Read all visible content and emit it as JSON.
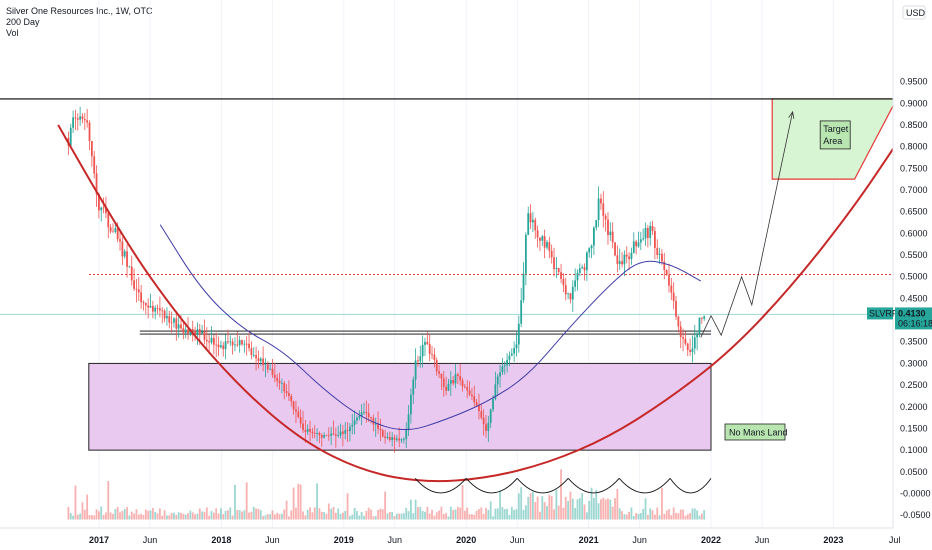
{
  "header": {
    "title": "Silver One Resources Inc., 1W, OTC",
    "indicator_1": "200 Day",
    "indicator_2": "Vol"
  },
  "colors": {
    "up": "#26a69a",
    "down": "#ef5350",
    "ma": "#3f3ca8",
    "curve": "#c62828",
    "zone_fill": "#e9c9ef",
    "target_fill": "#d7f5d2",
    "target_border": "#e53935",
    "price_badge": "#26a69a",
    "level_line": "#e53935"
  },
  "chart_data": {
    "type": "candlestick",
    "symbol": "SLVRF",
    "currency": "USD",
    "last_price": "0.4130",
    "countdown": "06:16:18",
    "y_axis": {
      "ticks": [
        "0.9500",
        "0.9000",
        "0.8500",
        "0.8000",
        "0.7500",
        "0.7000",
        "0.6500",
        "0.6000",
        "0.5500",
        "0.5000",
        "0.4500",
        "0.4000",
        "0.3500",
        "0.3000",
        "0.2500",
        "0.2000",
        "0.1500",
        "0.1000",
        "0.0500",
        "-0.0000",
        "-0.0500"
      ],
      "range": [
        -0.05,
        0.95
      ],
      "unit_label": "USD"
    },
    "x_axis": {
      "ticks": [
        "2017",
        "Jun",
        "2018",
        "Jun",
        "2019",
        "Jun",
        "2020",
        "Jun",
        "2021",
        "Jun",
        "2022",
        "Jun",
        "2023",
        "Jul"
      ],
      "range": [
        "2016-09",
        "2023-07"
      ]
    },
    "price_path": [
      [
        "2016-10",
        0.82
      ],
      [
        "2016-11",
        0.87
      ],
      [
        "2016-12",
        0.85
      ],
      [
        "2017-01",
        0.66
      ],
      [
        "2017-03",
        0.58
      ],
      [
        "2017-05",
        0.45
      ],
      [
        "2017-07",
        0.42
      ],
      [
        "2017-09",
        0.38
      ],
      [
        "2017-11",
        0.37
      ],
      [
        "2018-01",
        0.34
      ],
      [
        "2018-03",
        0.35
      ],
      [
        "2018-05",
        0.3
      ],
      [
        "2018-07",
        0.25
      ],
      [
        "2018-09",
        0.15
      ],
      [
        "2018-11",
        0.13
      ],
      [
        "2019-01",
        0.14
      ],
      [
        "2019-03",
        0.19
      ],
      [
        "2019-05",
        0.13
      ],
      [
        "2019-07",
        0.12
      ],
      [
        "2019-08",
        0.3
      ],
      [
        "2019-09",
        0.35
      ],
      [
        "2019-11",
        0.24
      ],
      [
        "2019-12",
        0.27
      ],
      [
        "2020-02",
        0.21
      ],
      [
        "2020-03",
        0.14
      ],
      [
        "2020-04",
        0.27
      ],
      [
        "2020-06",
        0.34
      ],
      [
        "2020-07",
        0.63
      ],
      [
        "2020-09",
        0.57
      ],
      [
        "2020-11",
        0.45
      ],
      [
        "2021-01",
        0.55
      ],
      [
        "2021-02",
        0.68
      ],
      [
        "2021-04",
        0.53
      ],
      [
        "2021-06",
        0.58
      ],
      [
        "2021-07",
        0.61
      ],
      [
        "2021-09",
        0.48
      ],
      [
        "2021-10",
        0.37
      ],
      [
        "2021-11",
        0.32
      ],
      [
        "2021-12",
        0.41
      ]
    ],
    "moving_average": {
      "name": "200 Day",
      "points": [
        [
          "2017-07",
          0.62
        ],
        [
          "2017-11",
          0.47
        ],
        [
          "2018-03",
          0.38
        ],
        [
          "2018-07",
          0.33
        ],
        [
          "2018-11",
          0.24
        ],
        [
          "2019-03",
          0.17
        ],
        [
          "2019-07",
          0.14
        ],
        [
          "2019-11",
          0.17
        ],
        [
          "2020-03",
          0.21
        ],
        [
          "2020-07",
          0.27
        ],
        [
          "2020-11",
          0.38
        ],
        [
          "2021-03",
          0.48
        ],
        [
          "2021-06",
          0.54
        ],
        [
          "2021-09",
          0.53
        ],
        [
          "2021-12",
          0.49
        ]
      ]
    },
    "levels": [
      {
        "price": 0.91,
        "style": "solid",
        "color": "#000000"
      },
      {
        "price": 0.505,
        "style": "dotted",
        "color": "#e53935"
      },
      {
        "price": 0.37,
        "style": "double",
        "color": "#000000"
      },
      {
        "price": 0.413,
        "style": "solid",
        "color": "#9fd8d3"
      }
    ],
    "zones": [
      {
        "label": "No Mans Land",
        "from": "2016-12",
        "to": "2022-01",
        "low": 0.1,
        "high": 0.3
      }
    ],
    "target_area": {
      "label": [
        "Target",
        "Area"
      ],
      "from": "2022-07",
      "to": "2023-07",
      "low": 0.725,
      "high": 0.91
    },
    "projection_path": [
      [
        "2021-12",
        0.36
      ],
      [
        "2022-01",
        0.41
      ],
      [
        "2022-02",
        0.365
      ],
      [
        "2022-04",
        0.5
      ],
      [
        "2022-05",
        0.435
      ],
      [
        "2022-09",
        0.88
      ]
    ],
    "cup_curve": [
      [
        "2016-09",
        0.85
      ],
      [
        "2017-03",
        0.6
      ],
      [
        "2017-09",
        0.4
      ],
      [
        "2018-03",
        0.24
      ],
      [
        "2018-09",
        0.12
      ],
      [
        "2019-03",
        0.05
      ],
      [
        "2019-09",
        0.025
      ],
      [
        "2020-03",
        0.035
      ],
      [
        "2020-09",
        0.07
      ],
      [
        "2021-03",
        0.13
      ],
      [
        "2021-09",
        0.22
      ],
      [
        "2022-03",
        0.33
      ],
      [
        "2022-09",
        0.48
      ],
      [
        "2023-03",
        0.66
      ],
      [
        "2023-07",
        0.8
      ]
    ],
    "volume_arcs": [
      [
        "2019-08",
        "2020-01"
      ],
      [
        "2020-01",
        "2020-06"
      ],
      [
        "2020-06",
        "2020-11"
      ],
      [
        "2020-11",
        "2021-04"
      ],
      [
        "2021-04",
        "2021-09"
      ],
      [
        "2021-09",
        "2022-01"
      ]
    ]
  }
}
